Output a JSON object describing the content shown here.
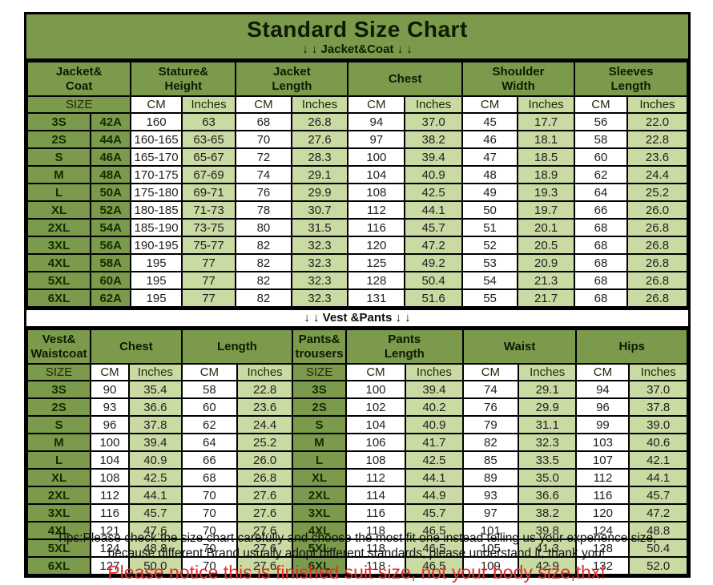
{
  "colors": {
    "olive": "#7b9a4b",
    "light_green": "#c9daa2",
    "red": "#e03030"
  },
  "title": "Standard Size Chart",
  "jacket_section_label": "↓ ↓  Jacket&Coat ↓ ↓",
  "vest_section_label": "↓ ↓  Vest &Pants ↓ ↓",
  "labels": {
    "size": "SIZE",
    "cm": "CM",
    "inches": "Inches"
  },
  "jacket_table": {
    "groups": [
      "Jacket&\nCoat",
      "Stature&\nHeight",
      "Jacket\nLength",
      "Chest",
      "Shoulder\nWidth",
      "Sleeves\nLength"
    ],
    "rows": [
      [
        "3S",
        "42A",
        "160",
        "63",
        "68",
        "26.8",
        "94",
        "37.0",
        "45",
        "17.7",
        "56",
        "22.0"
      ],
      [
        "2S",
        "44A",
        "160-165",
        "63-65",
        "70",
        "27.6",
        "97",
        "38.2",
        "46",
        "18.1",
        "58",
        "22.8"
      ],
      [
        "S",
        "46A",
        "165-170",
        "65-67",
        "72",
        "28.3",
        "100",
        "39.4",
        "47",
        "18.5",
        "60",
        "23.6"
      ],
      [
        "M",
        "48A",
        "170-175",
        "67-69",
        "74",
        "29.1",
        "104",
        "40.9",
        "48",
        "18.9",
        "62",
        "24.4"
      ],
      [
        "L",
        "50A",
        "175-180",
        "69-71",
        "76",
        "29.9",
        "108",
        "42.5",
        "49",
        "19.3",
        "64",
        "25.2"
      ],
      [
        "XL",
        "52A",
        "180-185",
        "71-73",
        "78",
        "30.7",
        "112",
        "44.1",
        "50",
        "19.7",
        "66",
        "26.0"
      ],
      [
        "2XL",
        "54A",
        "185-190",
        "73-75",
        "80",
        "31.5",
        "116",
        "45.7",
        "51",
        "20.1",
        "68",
        "26.8"
      ],
      [
        "3XL",
        "56A",
        "190-195",
        "75-77",
        "82",
        "32.3",
        "120",
        "47.2",
        "52",
        "20.5",
        "68",
        "26.8"
      ],
      [
        "4XL",
        "58A",
        "195",
        "77",
        "82",
        "32.3",
        "125",
        "49.2",
        "53",
        "20.9",
        "68",
        "26.8"
      ],
      [
        "5XL",
        "60A",
        "195",
        "77",
        "82",
        "32.3",
        "128",
        "50.4",
        "54",
        "21.3",
        "68",
        "26.8"
      ],
      [
        "6XL",
        "62A",
        "195",
        "77",
        "82",
        "32.3",
        "131",
        "51.6",
        "55",
        "21.7",
        "68",
        "26.8"
      ]
    ]
  },
  "vest_table": {
    "groups": [
      "Vest&\nWaistcoat",
      "Chest",
      "Length",
      "Pants&\ntrousers",
      "Pants\nLength",
      "Waist",
      "Hips"
    ],
    "rows": [
      [
        "3S",
        "90",
        "35.4",
        "58",
        "22.8",
        "3S",
        "100",
        "39.4",
        "74",
        "29.1",
        "94",
        "37.0"
      ],
      [
        "2S",
        "93",
        "36.6",
        "60",
        "23.6",
        "2S",
        "102",
        "40.2",
        "76",
        "29.9",
        "96",
        "37.8"
      ],
      [
        "S",
        "96",
        "37.8",
        "62",
        "24.4",
        "S",
        "104",
        "40.9",
        "79",
        "31.1",
        "99",
        "39.0"
      ],
      [
        "M",
        "100",
        "39.4",
        "64",
        "25.2",
        "M",
        "106",
        "41.7",
        "82",
        "32.3",
        "103",
        "40.6"
      ],
      [
        "L",
        "104",
        "40.9",
        "66",
        "26.0",
        "L",
        "108",
        "42.5",
        "85",
        "33.5",
        "107",
        "42.1"
      ],
      [
        "XL",
        "108",
        "42.5",
        "68",
        "26.8",
        "XL",
        "112",
        "44.1",
        "89",
        "35.0",
        "112",
        "44.1"
      ],
      [
        "2XL",
        "112",
        "44.1",
        "70",
        "27.6",
        "2XL",
        "114",
        "44.9",
        "93",
        "36.6",
        "116",
        "45.7"
      ],
      [
        "3XL",
        "116",
        "45.7",
        "70",
        "27.6",
        "3XL",
        "116",
        "45.7",
        "97",
        "38.2",
        "120",
        "47.2"
      ],
      [
        "4XL",
        "121",
        "47.6",
        "70",
        "27.6",
        "4XL",
        "118",
        "46.5",
        "101",
        "39.8",
        "124",
        "48.8"
      ],
      [
        "5XL",
        "124",
        "48.8",
        "70",
        "27.6",
        "5XL",
        "118",
        "46.5",
        "105",
        "41.3",
        "128",
        "50.4"
      ],
      [
        "6XL",
        "127",
        "50.0",
        "70",
        "27.6",
        "6XL",
        "118",
        "46.5",
        "109",
        "42.9",
        "132",
        "52.0"
      ]
    ]
  },
  "footer": {
    "tips_line1": "Tips:Please check the size chart carefully and choose the most fit one instead telling us your experience size,",
    "tips_line2": "because different Brand usually adopt different standards, please understand it, thank you!",
    "notice": "Please notice this is finished suit size, not your body size,thx!"
  }
}
